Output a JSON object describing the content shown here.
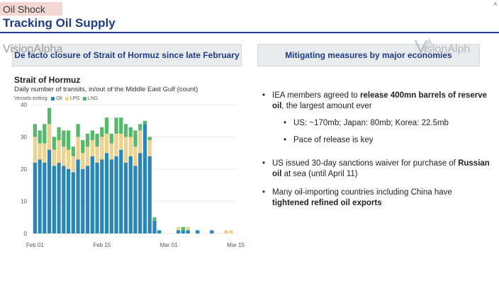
{
  "section_tag": "Oil Shock",
  "title": "Tracking Oil Supply",
  "corner_mark": "^",
  "watermark_left": "VisionAlpha",
  "watermark_right": "VisionAlph",
  "left_header": "De facto closure of Strait of Hormuz since late February",
  "right_header": "Mitigating measures by major economies",
  "colors": {
    "oil": "#2a86b4",
    "lpg": "#ecd28c",
    "lng": "#55b86a",
    "title_blue": "#1f3c88",
    "header_bg": "#e9ecef"
  },
  "chart_data": {
    "type": "bar",
    "stacked": true,
    "title": "Strait of Hormuz",
    "subtitle": "Daily number of transits, in/out of the Middle East Gulf (count)",
    "legend_label": "Vessels exiting:",
    "ylim": [
      0,
      40
    ],
    "yticks": [
      0,
      10,
      20,
      30,
      40
    ],
    "xticks": [
      {
        "label": "Feb 01",
        "day": 1
      },
      {
        "label": "Feb 15",
        "day": 15
      },
      {
        "label": "Mar 01",
        "day": 29
      },
      {
        "label": "Mar 15",
        "day": 43
      }
    ],
    "grid": true,
    "series": [
      {
        "name": "Oil",
        "color": "#2a86b4",
        "values": [
          22,
          23,
          22,
          26,
          21,
          22,
          21,
          20,
          19,
          23,
          20,
          21,
          24,
          22,
          23,
          25,
          23,
          24,
          26,
          22,
          24,
          21,
          25,
          34,
          24,
          4,
          1,
          0,
          0,
          0,
          1,
          1,
          1,
          0,
          1,
          0,
          0,
          1,
          0,
          0,
          0,
          0
        ]
      },
      {
        "name": "LPG",
        "color": "#ecd28c",
        "values": [
          8,
          5,
          6,
          8,
          5,
          7,
          6,
          6,
          5,
          7,
          5,
          6,
          5,
          5,
          7,
          6,
          5,
          7,
          5,
          8,
          6,
          6,
          7,
          0,
          5,
          0,
          0,
          0,
          0,
          0,
          1,
          0,
          1,
          0,
          0,
          0,
          0,
          0,
          0,
          0,
          1,
          1
        ]
      },
      {
        "name": "LNG",
        "color": "#55b86a",
        "values": [
          4,
          4,
          6,
          5,
          4,
          4,
          5,
          6,
          3,
          4,
          4,
          4,
          3,
          4,
          3,
          5,
          3,
          5,
          5,
          4,
          3,
          5,
          2,
          1,
          1,
          1,
          0,
          0,
          0,
          0,
          0,
          1,
          0,
          0,
          0,
          0,
          0,
          0,
          0,
          0,
          0,
          0
        ]
      }
    ]
  },
  "bullets": [
    {
      "segments": [
        {
          "text": "IEA members agreed to ",
          "bold": false
        },
        {
          "text": "release 400mn barrels of reserve oil",
          "bold": true
        },
        {
          "text": ", the largest amount ever",
          "bold": false
        }
      ],
      "sub": [
        "US: ~170mb; Japan: 80mb; Korea: 22.5mb",
        "Pace of release is key"
      ]
    },
    {
      "segments": [
        {
          "text": "US issued 30-day sanctions waiver for purchase of ",
          "bold": false
        },
        {
          "text": "Russian oil",
          "bold": true
        },
        {
          "text": " at sea (until April 11)",
          "bold": false
        }
      ],
      "sub": []
    },
    {
      "segments": [
        {
          "text": "Many oil-importing countries including China have ",
          "bold": false
        },
        {
          "text": "tightened refined oil exports",
          "bold": true
        }
      ],
      "sub": []
    }
  ]
}
